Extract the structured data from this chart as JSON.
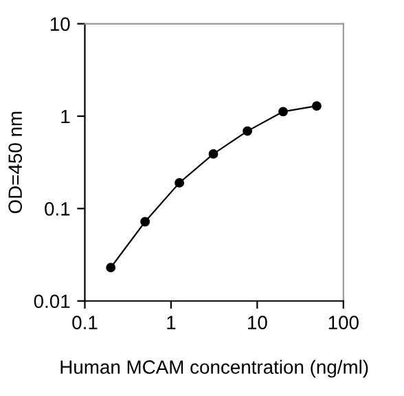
{
  "chart_data": {
    "type": "line",
    "xlabel": "Human MCAM concentration (ng/ml)",
    "ylabel": "OD=450 nm",
    "log": "xy",
    "marker": "circle",
    "line_style": "solid",
    "grid": false,
    "legend": false,
    "x": [
      0.2,
      0.5,
      1.25,
      3.1,
      7.7,
      20,
      49
    ],
    "series": [
      {
        "color": "#000000",
        "values": [
          0.023,
          0.072,
          0.19,
          0.39,
          0.69,
          1.12,
          1.29
        ]
      }
    ],
    "xlim": [
      0.1,
      100
    ],
    "xticks": [
      0.1,
      1,
      10,
      100
    ],
    "ylim": [
      0.01,
      10
    ],
    "yticks": [
      0.01,
      0.1,
      1,
      10
    ]
  }
}
